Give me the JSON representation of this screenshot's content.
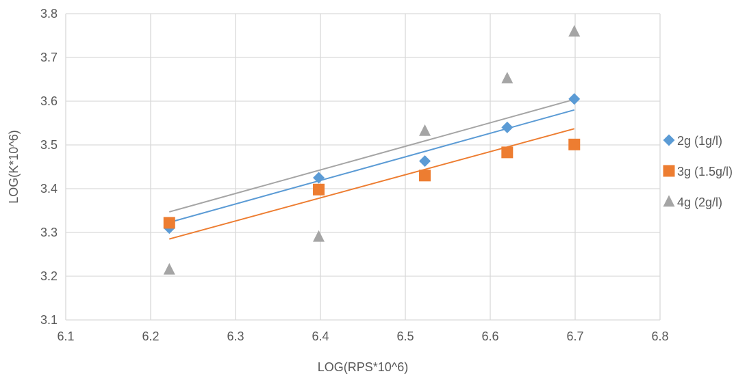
{
  "chart_data": {
    "type": "scatter",
    "xlabel": "LOG(RPS*10^6)",
    "ylabel": "LOG(K*10^6)",
    "xlim": [
      6.1,
      6.8
    ],
    "ylim": [
      3.1,
      3.8
    ],
    "x_ticks": [
      "6.1",
      "6.2",
      "6.3",
      "6.4",
      "6.5",
      "6.6",
      "6.7",
      "6.8"
    ],
    "y_ticks": [
      "3.1",
      "3.2",
      "3.3",
      "3.4",
      "3.5",
      "3.6",
      "3.7",
      "3.8"
    ],
    "grid": true,
    "legend_position": "right",
    "series": [
      {
        "name": "2g (1g/l)",
        "marker": "diamond",
        "color": "#5B9BD5",
        "x": [
          6.222,
          6.398,
          6.523,
          6.62,
          6.699
        ],
        "y": [
          3.31,
          3.425,
          3.463,
          3.54,
          3.605
        ],
        "trendline": {
          "x": [
            6.222,
            6.699
          ],
          "y": [
            3.323,
            3.58
          ]
        }
      },
      {
        "name": "3g (1.5g/l)",
        "marker": "square",
        "color": "#ED7D31",
        "x": [
          6.222,
          6.398,
          6.523,
          6.62,
          6.699
        ],
        "y": [
          3.322,
          3.398,
          3.43,
          3.483,
          3.501
        ],
        "trendline": {
          "x": [
            6.222,
            6.699
          ],
          "y": [
            3.285,
            3.537
          ]
        }
      },
      {
        "name": "4g (2g/l)",
        "marker": "triangle",
        "color": "#A5A5A5",
        "x": [
          6.222,
          6.398,
          6.523,
          6.62,
          6.699
        ],
        "y": [
          3.215,
          3.29,
          3.532,
          3.652,
          3.759
        ],
        "trendline": {
          "x": [
            6.222,
            6.699
          ],
          "y": [
            3.347,
            3.604
          ]
        }
      }
    ]
  }
}
